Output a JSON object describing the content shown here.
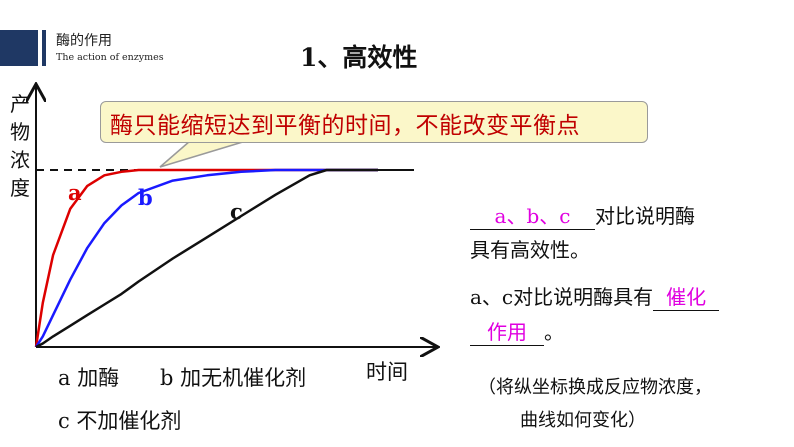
{
  "header": {
    "title": "酶的作用",
    "subtitle": "The action of enzymes"
  },
  "main_title": "1、高效性",
  "callout": "酶只能缩短达到平衡的时间，不能改变平衡点",
  "legend": {
    "a": "a 加酶",
    "b": "b 加无机催化剂",
    "c": "c 不加催化剂"
  },
  "right_panel": {
    "blank1_answer": "a、b、c",
    "line1_suffix": "对比说明酶",
    "line2": "具有高效性。",
    "line3_prefix": "a、c对比说明酶具有",
    "blank2_answer_part1": "催化",
    "blank3_answer_part2": "作用",
    "line4_suffix": "。",
    "note_line1": "（将纵坐标换成反应物浓度，",
    "note_line2": "曲线如何变化）"
  },
  "chart_data": {
    "type": "line",
    "xlabel": "时间",
    "ylabel": "产物浓度",
    "x": [
      0,
      0.02,
      0.05,
      0.1,
      0.15,
      0.2,
      0.25,
      0.3,
      0.4,
      0.5,
      0.6,
      0.7,
      0.8,
      0.85,
      0.9,
      1.0
    ],
    "series": [
      {
        "name": "a",
        "color": "#dd0000",
        "values": [
          0,
          0.25,
          0.52,
          0.78,
          0.91,
          0.97,
          0.99,
          1.0,
          1.0,
          1.0,
          1.0,
          1.0,
          1.0,
          1.0,
          1.0,
          1.0
        ]
      },
      {
        "name": "b",
        "color": "#1a1aff",
        "values": [
          0,
          0.06,
          0.18,
          0.38,
          0.56,
          0.7,
          0.8,
          0.87,
          0.94,
          0.97,
          0.99,
          1.0,
          1.0,
          1.0,
          1.0,
          1.0
        ]
      },
      {
        "name": "c",
        "color": "#111111",
        "values": [
          0,
          0.02,
          0.06,
          0.12,
          0.18,
          0.24,
          0.3,
          0.37,
          0.5,
          0.62,
          0.74,
          0.86,
          0.97,
          1.0,
          1.0,
          1.0
        ]
      }
    ],
    "equilibrium_line": {
      "style": "dashed",
      "value": 1.0
    },
    "xlim": [
      0,
      1.0
    ],
    "ylim": [
      0,
      1.25
    ],
    "grid": false
  },
  "colors": {
    "header_bar": "#1f3864",
    "callout_bg": "#fbf7c9",
    "callout_text": "#c00000",
    "answer": "#e000e0"
  }
}
